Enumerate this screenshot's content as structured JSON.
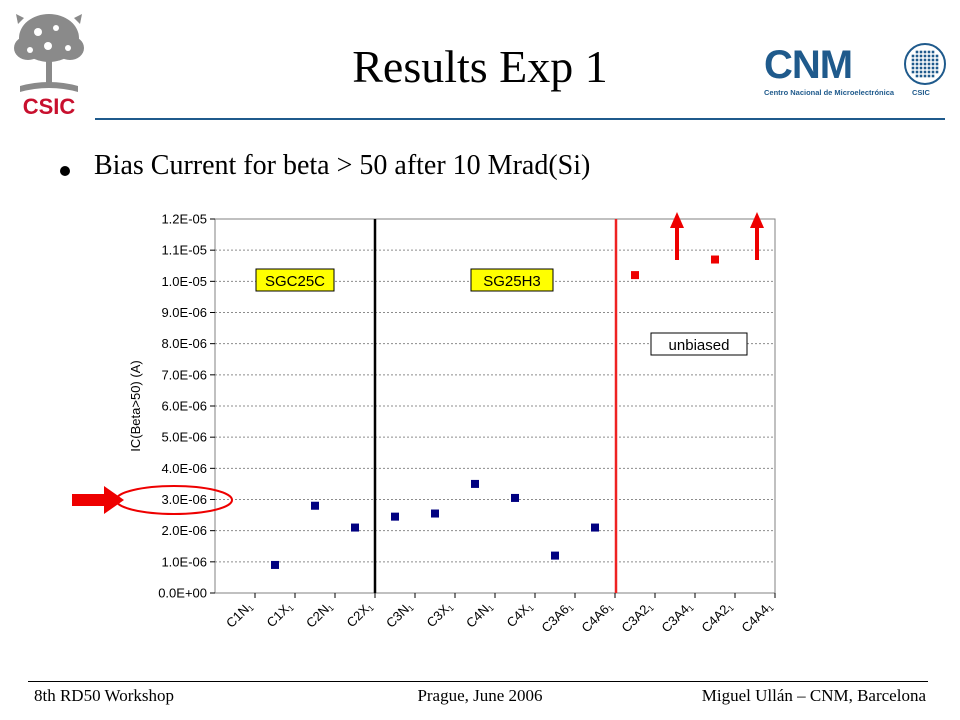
{
  "header": {
    "title": "Results Exp 1",
    "left_logo_text": "CSIC",
    "right_logo_text": "CNM",
    "right_logo_subtitle": "Centro Nacional de Microelectrónica",
    "right_logo_csic": "CSIC"
  },
  "bullet": {
    "text": "Bias Current for beta > 50 after 10 Mrad(Si)"
  },
  "chart_data": {
    "type": "scatter",
    "ylabel": "IC(Beta>50) (A)",
    "ylim": [
      0,
      1.2e-05
    ],
    "yticks": [
      "0.0E+00",
      "1.0E-06",
      "2.0E-06",
      "3.0E-06",
      "4.0E-06",
      "5.0E-06",
      "6.0E-06",
      "7.0E-06",
      "8.0E-06",
      "9.0E-06",
      "1.0E-05",
      "1.1E-05",
      "1.2E-05"
    ],
    "categories": [
      "C1N1",
      "C1X1",
      "C2N1",
      "C2X1",
      "C3N1",
      "C3X1",
      "C4N1",
      "C4X1",
      "C3A61",
      "C4A61",
      "C3A21",
      "C3A41",
      "C4A21",
      "C4A41"
    ],
    "category_labels": [
      {
        "base": "C1N",
        "sub": "1"
      },
      {
        "base": "C1X",
        "sub": "1"
      },
      {
        "base": "C2N",
        "sub": "1"
      },
      {
        "base": "C2X",
        "sub": "1"
      },
      {
        "base": "C3N",
        "sub": "1"
      },
      {
        "base": "C3X",
        "sub": "1"
      },
      {
        "base": "C4N",
        "sub": "1"
      },
      {
        "base": "C4X",
        "sub": "1"
      },
      {
        "base": "C3A6",
        "sub": "1"
      },
      {
        "base": "C4A6",
        "sub": "1"
      },
      {
        "base": "C3A2",
        "sub": "1"
      },
      {
        "base": "C3A4",
        "sub": "1"
      },
      {
        "base": "C4A2",
        "sub": "1"
      },
      {
        "base": "C4A4",
        "sub": "1"
      }
    ],
    "grid": true,
    "series": [
      {
        "color": "#000080",
        "points": [
          {
            "x": 1.5,
            "y": 9e-07
          },
          {
            "x": 2.5,
            "y": 2.8e-06
          },
          {
            "x": 3.5,
            "y": 2.1e-06
          },
          {
            "x": 4.5,
            "y": 2.45e-06
          },
          {
            "x": 5.5,
            "y": 2.55e-06
          },
          {
            "x": 6.5,
            "y": 3.5e-06
          },
          {
            "x": 7.5,
            "y": 3.05e-06
          },
          {
            "x": 8.5,
            "y": 1.2e-06
          },
          {
            "x": 9.5,
            "y": 2.1e-06
          }
        ]
      },
      {
        "color": "#ee0000",
        "points": [
          {
            "x": 10.5,
            "y": 1.02e-05
          },
          {
            "x": 12.5,
            "y": 1.07e-05
          }
        ]
      }
    ],
    "annotations": {
      "group1_label": "SGC25C",
      "group2_label": "SG25H3",
      "unbiased_label": "unbiased",
      "highlight_tick": "3.0E-06"
    },
    "colors": {
      "highlight": "#ffff00",
      "separator_black": "#000000",
      "separator_red": "#ee2222",
      "arrow_red": "#ee0000"
    }
  },
  "footer": {
    "left": "8th RD50 Workshop",
    "center": "Prague, June 2006",
    "right": "Miguel Ullán – CNM, Barcelona"
  }
}
